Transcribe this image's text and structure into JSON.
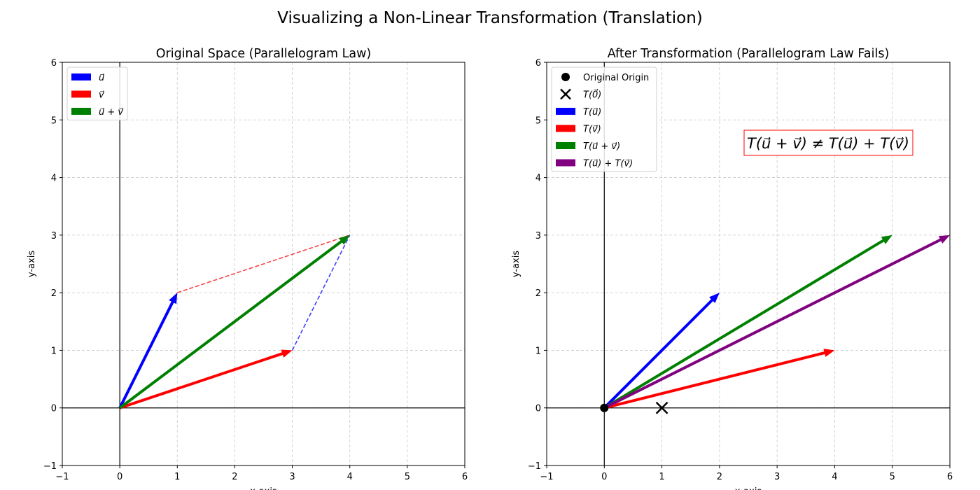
{
  "suptitle": "Visualizing a Non-Linear Transformation (Translation)",
  "chart_data": [
    {
      "type": "quiver",
      "title": "Original Space (Parallelogram Law)",
      "xlabel": "x-axis",
      "ylabel": "y-axis",
      "xlim": [
        -1,
        6
      ],
      "ylim": [
        -1,
        6
      ],
      "xticks": [
        "−1",
        "0",
        "1",
        "2",
        "3",
        "4",
        "5",
        "6"
      ],
      "yticks": [
        "−1",
        "0",
        "1",
        "2",
        "3",
        "4",
        "5",
        "6"
      ],
      "grid": true,
      "legend_position": "top-left",
      "vectors": [
        {
          "name": "u⃗",
          "from": [
            0,
            0
          ],
          "to": [
            1,
            2
          ],
          "color": "#0000ff"
        },
        {
          "name": "v⃗",
          "from": [
            0,
            0
          ],
          "to": [
            3,
            1
          ],
          "color": "#ff0000"
        },
        {
          "name": "u⃗ + v⃗",
          "from": [
            0,
            0
          ],
          "to": [
            4,
            3
          ],
          "color": "#008000"
        }
      ],
      "dashed_lines": [
        {
          "from": [
            1,
            2
          ],
          "to": [
            4,
            3
          ],
          "color": "#ff0000"
        },
        {
          "from": [
            3,
            1
          ],
          "to": [
            4,
            3
          ],
          "color": "#0000ff"
        }
      ]
    },
    {
      "type": "quiver",
      "title": "After Transformation (Parallelogram Law Fails)",
      "xlabel": "x-axis",
      "ylabel": "y-axis",
      "xlim": [
        -1,
        6
      ],
      "ylim": [
        -1,
        6
      ],
      "xticks": [
        "−1",
        "0",
        "1",
        "2",
        "3",
        "4",
        "5",
        "6"
      ],
      "yticks": [
        "−1",
        "0",
        "1",
        "2",
        "3",
        "4",
        "5",
        "6"
      ],
      "grid": true,
      "legend_position": "top-left",
      "points": [
        {
          "name": "Original Origin",
          "x": 0,
          "y": 0,
          "marker": "circle",
          "color": "#000000"
        },
        {
          "name": "T(0⃗)",
          "x": 1,
          "y": 0,
          "marker": "x",
          "color": "#000000"
        }
      ],
      "vectors": [
        {
          "name": "T(u⃗)",
          "from": [
            0,
            0
          ],
          "to": [
            2,
            2
          ],
          "color": "#0000ff"
        },
        {
          "name": "T(v⃗)",
          "from": [
            0,
            0
          ],
          "to": [
            4,
            1
          ],
          "color": "#ff0000"
        },
        {
          "name": "T(u⃗ + v⃗)",
          "from": [
            0,
            0
          ],
          "to": [
            5,
            3
          ],
          "color": "#008000"
        },
        {
          "name": "T(u⃗) + T(v⃗)",
          "from": [
            0,
            0
          ],
          "to": [
            6,
            3
          ],
          "color": "#800080"
        }
      ],
      "annotation": {
        "text": "T(u⃗ + v⃗) ≠ T(u⃗) + T(v⃗)",
        "x": 3.9,
        "y": 4.6,
        "border_color": "#ff0000"
      }
    }
  ]
}
